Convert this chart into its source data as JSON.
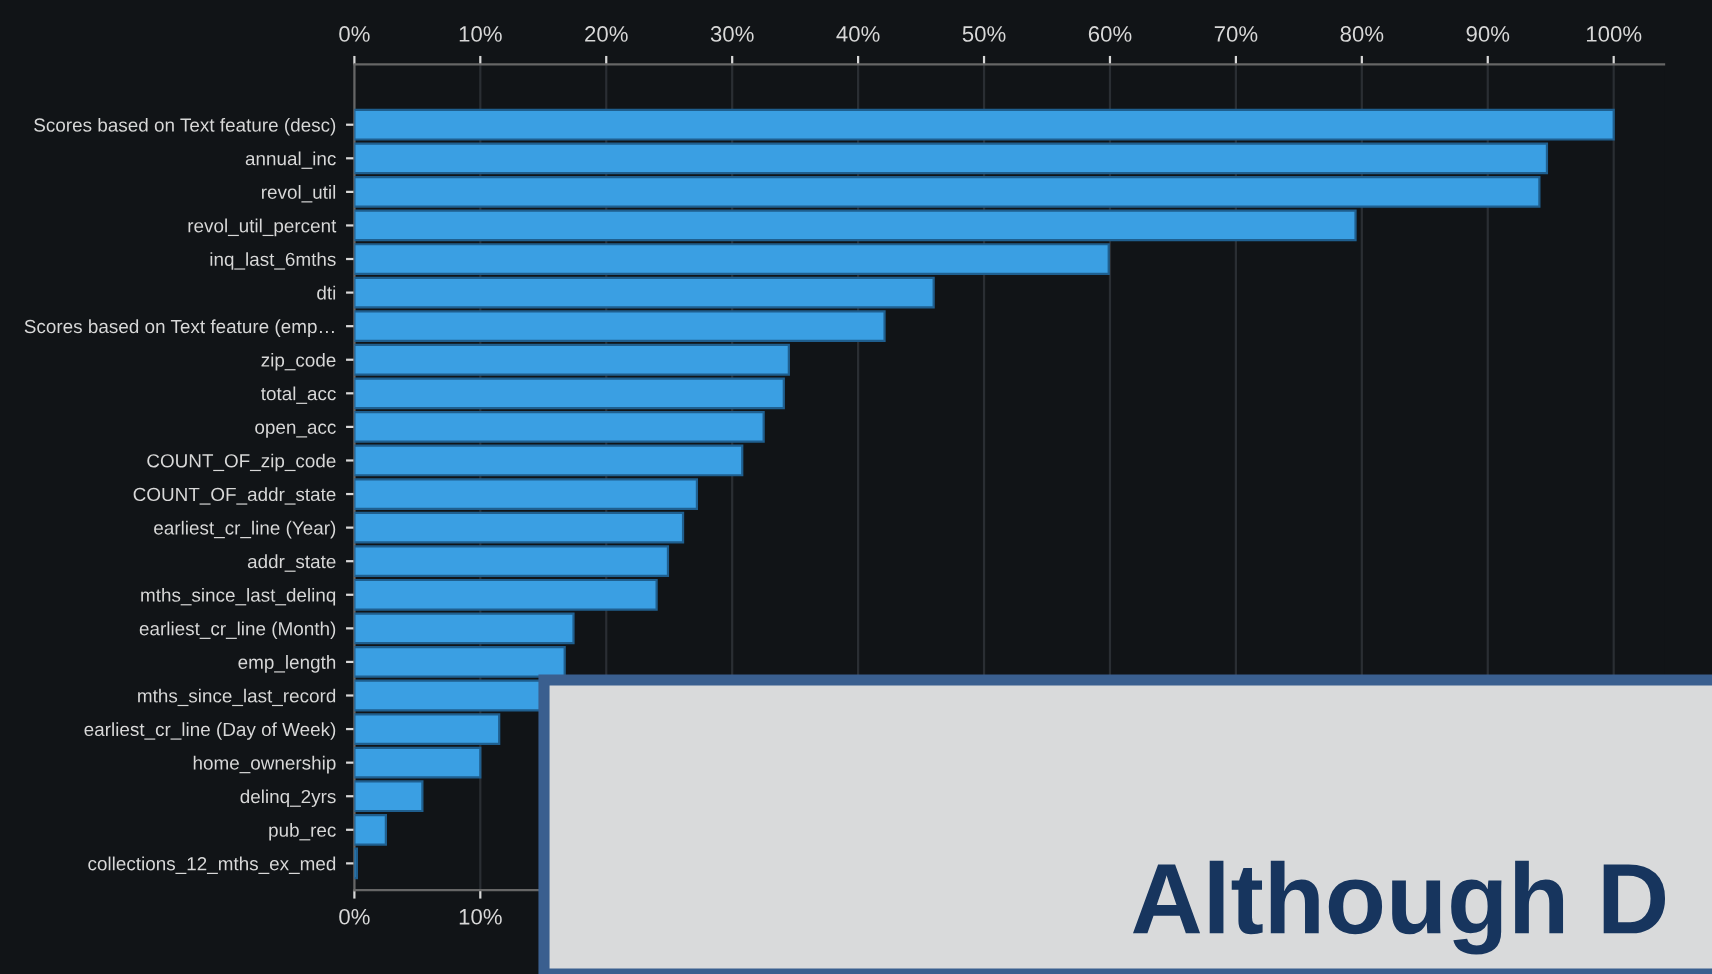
{
  "chart_data": {
    "type": "bar",
    "orientation": "horizontal",
    "categories": [
      "Scores based on Text feature (desc)",
      "annual_inc",
      "revol_util",
      "revol_util_percent",
      "inq_last_6mths",
      "dti",
      "Scores based on Text feature (emp…",
      "zip_code",
      "total_acc",
      "open_acc",
      "COUNT_OF_zip_code",
      "COUNT_OF_addr_state",
      "earliest_cr_line (Year)",
      "addr_state",
      "mths_since_last_delinq",
      "earliest_cr_line (Month)",
      "emp_length",
      "mths_since_last_record",
      "earliest_cr_line (Day of Week)",
      "home_ownership",
      "delinq_2yrs",
      "pub_rec",
      "collections_12_mths_ex_med"
    ],
    "values": [
      100,
      94.7,
      94.1,
      79.5,
      59.9,
      46.0,
      42.1,
      34.5,
      34.1,
      32.5,
      30.8,
      27.2,
      26.1,
      24.9,
      24.0,
      17.4,
      16.7,
      15.3,
      11.5,
      10.0,
      5.4,
      2.5,
      0.2
    ],
    "color": "#3a9fe3",
    "xlim": [
      0,
      104
    ],
    "xticks": [
      {
        "value": 0,
        "label": "0%"
      },
      {
        "value": 10,
        "label": "10%"
      },
      {
        "value": 20,
        "label": null
      },
      {
        "value": 30,
        "label": null
      },
      {
        "value": 40,
        "label": null
      },
      {
        "value": 50,
        "label": null
      },
      {
        "value": 60,
        "label": null
      },
      {
        "value": 70,
        "label": null
      },
      {
        "value": 80,
        "label": null
      },
      {
        "value": 90,
        "label": null
      },
      {
        "value": 100,
        "label": null
      }
    ],
    "x2lim": [
      0,
      104
    ],
    "x2ticks": [
      {
        "value": 0,
        "label": "0%"
      },
      {
        "value": 10,
        "label": "10%"
      },
      {
        "value": 20,
        "label": "20%"
      },
      {
        "value": 30,
        "label": "30%"
      },
      {
        "value": 40,
        "label": "40%"
      },
      {
        "value": 50,
        "label": "50%"
      },
      {
        "value": 60,
        "label": "60%"
      },
      {
        "value": 70,
        "label": "70%"
      },
      {
        "value": 80,
        "label": "80%"
      },
      {
        "value": 90,
        "label": "90%"
      },
      {
        "value": 100,
        "label": "100%"
      }
    ],
    "grid": "x",
    "legend": false,
    "annotations": [
      "Although D"
    ]
  }
}
